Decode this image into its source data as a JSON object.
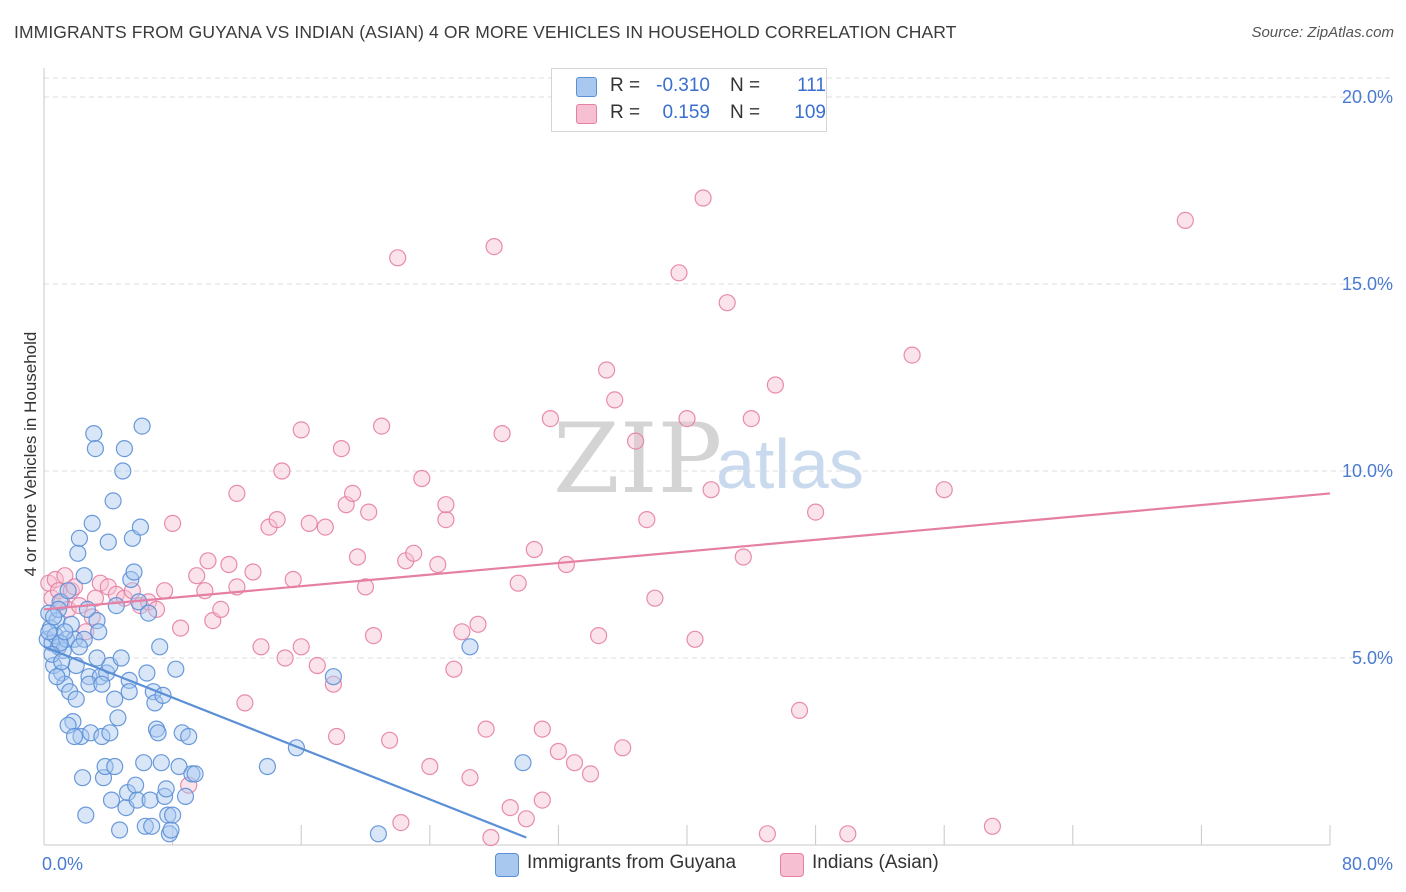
{
  "title": "IMMIGRANTS FROM GUYANA VS INDIAN (ASIAN) 4 OR MORE VEHICLES IN HOUSEHOLD CORRELATION CHART",
  "source": "Source: ZipAtlas.com",
  "watermark": {
    "zip": "ZIP",
    "atlas": "atlas"
  },
  "legend": {
    "rows": [
      {
        "r_label": "R =",
        "r_value": "-0.310",
        "n_label": "N =",
        "n_value": "111",
        "color": "#a9c8f0",
        "border": "#5b8fd6"
      },
      {
        "r_label": "R =",
        "r_value": "0.159",
        "n_label": "N =",
        "n_value": "109",
        "color": "#f6c0d2",
        "border": "#e57fa3"
      }
    ]
  },
  "chart_data": {
    "type": "scatter",
    "title": "IMMIGRANTS FROM GUYANA VS INDIAN (ASIAN) 4 OR MORE VEHICLES IN HOUSEHOLD CORRELATION CHART",
    "xlabel": "",
    "ylabel": "4 or more Vehicles in Household",
    "xlim": [
      0,
      80
    ],
    "ylim": [
      0,
      20
    ],
    "x_tick_labels": [
      "0.0%",
      "80.0%"
    ],
    "y_ticks": [
      5,
      10,
      15,
      20
    ],
    "y_tick_labels": [
      "5.0%",
      "10.0%",
      "15.0%",
      "20.0%"
    ],
    "grid": true,
    "series": [
      {
        "name": "Immigrants from Guyana",
        "color": "#5b8fd6",
        "fill": "#a9c8f0",
        "trend": {
          "x": [
            0,
            30
          ],
          "y": [
            5.3,
            0.2
          ]
        },
        "points": [
          [
            0.2,
            5.5
          ],
          [
            0.3,
            6.2
          ],
          [
            0.4,
            5.8
          ],
          [
            0.5,
            5.4
          ],
          [
            0.6,
            4.8
          ],
          [
            0.7,
            5.6
          ],
          [
            0.8,
            6.0
          ],
          [
            0.9,
            5.3
          ],
          [
            1.0,
            6.5
          ],
          [
            1.1,
            4.6
          ],
          [
            1.2,
            5.2
          ],
          [
            1.3,
            4.3
          ],
          [
            1.4,
            5.5
          ],
          [
            1.5,
            6.8
          ],
          [
            1.6,
            4.1
          ],
          [
            1.7,
            5.9
          ],
          [
            1.8,
            3.3
          ],
          [
            1.9,
            5.5
          ],
          [
            2.0,
            4.8
          ],
          [
            2.1,
            7.8
          ],
          [
            2.2,
            8.2
          ],
          [
            2.3,
            2.9
          ],
          [
            2.4,
            1.8
          ],
          [
            2.5,
            5.5
          ],
          [
            2.6,
            0.8
          ],
          [
            2.7,
            6.3
          ],
          [
            2.8,
            4.5
          ],
          [
            2.9,
            3.0
          ],
          [
            3.0,
            8.6
          ],
          [
            3.1,
            11.0
          ],
          [
            3.2,
            10.6
          ],
          [
            3.3,
            6.0
          ],
          [
            3.4,
            5.7
          ],
          [
            3.5,
            4.5
          ],
          [
            3.6,
            2.9
          ],
          [
            3.7,
            1.8
          ],
          [
            3.8,
            2.1
          ],
          [
            3.9,
            4.6
          ],
          [
            4.0,
            8.1
          ],
          [
            4.1,
            4.8
          ],
          [
            4.2,
            1.2
          ],
          [
            4.3,
            9.2
          ],
          [
            4.4,
            3.9
          ],
          [
            4.5,
            6.4
          ],
          [
            4.6,
            3.4
          ],
          [
            4.7,
            0.4
          ],
          [
            4.8,
            5.0
          ],
          [
            4.9,
            10.0
          ],
          [
            5.0,
            10.6
          ],
          [
            5.1,
            1.0
          ],
          [
            5.2,
            1.4
          ],
          [
            5.3,
            4.4
          ],
          [
            5.4,
            7.1
          ],
          [
            5.5,
            8.2
          ],
          [
            5.6,
            7.3
          ],
          [
            5.7,
            1.6
          ],
          [
            5.8,
            1.2
          ],
          [
            5.9,
            6.5
          ],
          [
            6.0,
            8.5
          ],
          [
            6.1,
            11.2
          ],
          [
            6.2,
            2.2
          ],
          [
            6.3,
            0.5
          ],
          [
            6.4,
            4.6
          ],
          [
            6.5,
            6.2
          ],
          [
            6.6,
            1.2
          ],
          [
            6.7,
            0.5
          ],
          [
            6.8,
            4.1
          ],
          [
            6.9,
            3.8
          ],
          [
            7.0,
            3.1
          ],
          [
            7.1,
            3.0
          ],
          [
            7.2,
            5.3
          ],
          [
            7.3,
            2.2
          ],
          [
            7.4,
            4.0
          ],
          [
            7.5,
            1.3
          ],
          [
            7.6,
            1.5
          ],
          [
            7.7,
            0.8
          ],
          [
            7.8,
            0.3
          ],
          [
            7.9,
            0.4
          ],
          [
            8.0,
            0.8
          ],
          [
            8.2,
            4.7
          ],
          [
            8.4,
            2.1
          ],
          [
            8.6,
            3.0
          ],
          [
            8.8,
            1.3
          ],
          [
            9.0,
            2.9
          ],
          [
            9.2,
            1.9
          ],
          [
            9.4,
            1.9
          ],
          [
            1.0,
            5.4
          ],
          [
            0.5,
            5.1
          ],
          [
            0.9,
            6.3
          ],
          [
            1.5,
            3.2
          ],
          [
            2.2,
            5.3
          ],
          [
            2.8,
            4.3
          ],
          [
            3.6,
            4.3
          ],
          [
            4.1,
            3.0
          ],
          [
            0.6,
            6.1
          ],
          [
            1.3,
            5.7
          ],
          [
            13.9,
            2.1
          ],
          [
            15.7,
            2.6
          ],
          [
            18.0,
            4.5
          ],
          [
            20.8,
            0.3
          ],
          [
            26.5,
            5.3
          ],
          [
            29.8,
            2.2
          ],
          [
            1.1,
            4.9
          ],
          [
            2.0,
            3.9
          ],
          [
            0.3,
            5.7
          ],
          [
            3.3,
            5.0
          ],
          [
            2.5,
            7.2
          ],
          [
            0.8,
            4.5
          ],
          [
            1.9,
            2.9
          ],
          [
            4.4,
            2.1
          ],
          [
            5.3,
            4.1
          ]
        ]
      },
      {
        "name": "Indians (Asian)",
        "color": "#e57fa3",
        "fill": "#f6c0d2",
        "trend": {
          "x": [
            0,
            80
          ],
          "y": [
            6.3,
            9.4
          ]
        },
        "points": [
          [
            0.3,
            7.0
          ],
          [
            0.5,
            6.6
          ],
          [
            0.7,
            7.1
          ],
          [
            0.9,
            6.8
          ],
          [
            1.1,
            6.5
          ],
          [
            1.3,
            7.2
          ],
          [
            1.5,
            6.3
          ],
          [
            1.7,
            6.8
          ],
          [
            1.9,
            6.9
          ],
          [
            2.2,
            6.4
          ],
          [
            2.6,
            5.7
          ],
          [
            3.0,
            6.1
          ],
          [
            3.5,
            7.0
          ],
          [
            4.0,
            6.9
          ],
          [
            4.5,
            6.7
          ],
          [
            5.0,
            6.6
          ],
          [
            5.5,
            6.8
          ],
          [
            6.0,
            6.4
          ],
          [
            6.5,
            6.5
          ],
          [
            7.0,
            6.3
          ],
          [
            7.5,
            6.8
          ],
          [
            8.0,
            8.6
          ],
          [
            8.5,
            5.8
          ],
          [
            9.0,
            1.6
          ],
          [
            9.5,
            7.2
          ],
          [
            10.0,
            6.8
          ],
          [
            10.5,
            6.0
          ],
          [
            11.0,
            6.3
          ],
          [
            11.5,
            7.5
          ],
          [
            12.0,
            6.9
          ],
          [
            12.5,
            3.8
          ],
          [
            13.0,
            7.3
          ],
          [
            13.5,
            5.3
          ],
          [
            14.0,
            8.5
          ],
          [
            14.5,
            8.7
          ],
          [
            15.0,
            5.0
          ],
          [
            15.5,
            7.1
          ],
          [
            16.0,
            11.1
          ],
          [
            16.5,
            8.6
          ],
          [
            17.0,
            4.8
          ],
          [
            17.5,
            8.5
          ],
          [
            18.0,
            4.3
          ],
          [
            18.5,
            10.6
          ],
          [
            18.8,
            9.1
          ],
          [
            19.2,
            9.4
          ],
          [
            19.5,
            7.7
          ],
          [
            20.0,
            6.9
          ],
          [
            20.5,
            5.6
          ],
          [
            21.0,
            11.2
          ],
          [
            21.5,
            2.8
          ],
          [
            22.0,
            15.7
          ],
          [
            22.5,
            7.6
          ],
          [
            23.0,
            7.8
          ],
          [
            23.5,
            9.8
          ],
          [
            24.0,
            2.1
          ],
          [
            24.5,
            7.5
          ],
          [
            25.0,
            8.7
          ],
          [
            25.5,
            4.7
          ],
          [
            26.0,
            5.7
          ],
          [
            26.5,
            1.8
          ],
          [
            27.0,
            5.9
          ],
          [
            27.5,
            3.1
          ],
          [
            28.0,
            16.0
          ],
          [
            28.5,
            11.0
          ],
          [
            29.0,
            1.0
          ],
          [
            29.5,
            7.0
          ],
          [
            30.0,
            0.7
          ],
          [
            30.5,
            7.9
          ],
          [
            31.0,
            3.1
          ],
          [
            31.5,
            11.4
          ],
          [
            32.0,
            2.5
          ],
          [
            32.5,
            7.5
          ],
          [
            33.0,
            2.2
          ],
          [
            34.0,
            1.9
          ],
          [
            34.5,
            5.6
          ],
          [
            35.0,
            12.7
          ],
          [
            35.5,
            11.9
          ],
          [
            36.0,
            2.6
          ],
          [
            36.8,
            10.8
          ],
          [
            37.5,
            8.7
          ],
          [
            38.0,
            6.6
          ],
          [
            39.5,
            15.3
          ],
          [
            40.0,
            11.4
          ],
          [
            40.5,
            5.5
          ],
          [
            41.0,
            17.3
          ],
          [
            41.5,
            9.5
          ],
          [
            42.5,
            14.5
          ],
          [
            43.5,
            7.7
          ],
          [
            44.0,
            11.4
          ],
          [
            45.5,
            12.3
          ],
          [
            47.0,
            3.6
          ],
          [
            48.0,
            8.9
          ],
          [
            50.0,
            0.3
          ],
          [
            54.0,
            13.1
          ],
          [
            56.0,
            9.5
          ],
          [
            59.0,
            0.5
          ],
          [
            71.0,
            16.7
          ],
          [
            45.0,
            0.3
          ],
          [
            16.0,
            5.3
          ],
          [
            18.2,
            2.9
          ],
          [
            22.2,
            0.6
          ],
          [
            27.8,
            0.2
          ],
          [
            31.0,
            1.2
          ],
          [
            10.2,
            7.6
          ],
          [
            12.0,
            9.4
          ],
          [
            14.8,
            10.0
          ],
          [
            20.2,
            8.9
          ],
          [
            25.0,
            9.1
          ],
          [
            3.2,
            6.6
          ]
        ]
      }
    ]
  },
  "bottom_legend": [
    {
      "label": "Immigrants from Guyana"
    },
    {
      "label": "Indians (Asian)"
    }
  ]
}
